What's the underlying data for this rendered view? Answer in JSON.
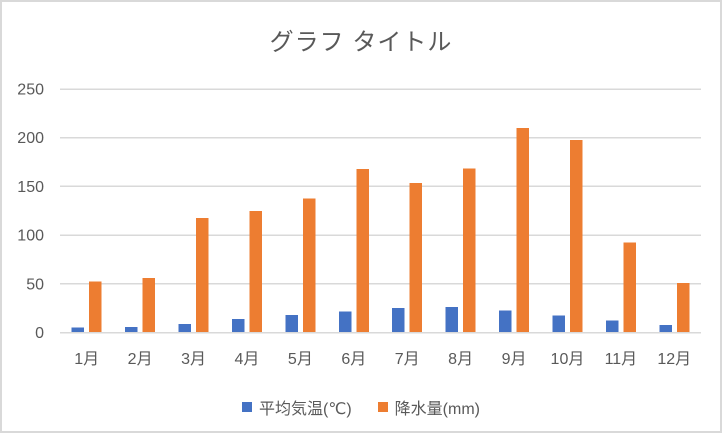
{
  "chart_data": {
    "type": "bar",
    "title": "グラフ タイトル",
    "categories": [
      "1月",
      "2月",
      "3月",
      "4月",
      "5月",
      "6月",
      "7月",
      "8月",
      "9月",
      "10月",
      "11月",
      "12月"
    ],
    "series": [
      {
        "name": "平均気温(℃)",
        "color": "#4472C4",
        "values": [
          5.2,
          5.7,
          8.7,
          13.9,
          18.2,
          21.4,
          25.0,
          26.4,
          22.8,
          17.5,
          12.1,
          7.6
        ]
      },
      {
        "name": "降水量(mm)",
        "color": "#ED7D31",
        "values": [
          52.3,
          56.1,
          117.5,
          124.5,
          137.8,
          167.7,
          153.5,
          168.2,
          209.9,
          197.8,
          92.5,
          51.0
        ]
      }
    ],
    "xlabel": "",
    "ylabel": "",
    "ylim": [
      0,
      250
    ],
    "yticks": [
      0,
      50,
      100,
      150,
      200,
      250
    ],
    "grid": true,
    "legend_position": "bottom",
    "colors": {
      "background": "#FFFFFF",
      "border": "#D9D9D9",
      "gridline": "#D9D9D9",
      "axis_line": "#D9D9D9",
      "text": "#595959"
    }
  }
}
